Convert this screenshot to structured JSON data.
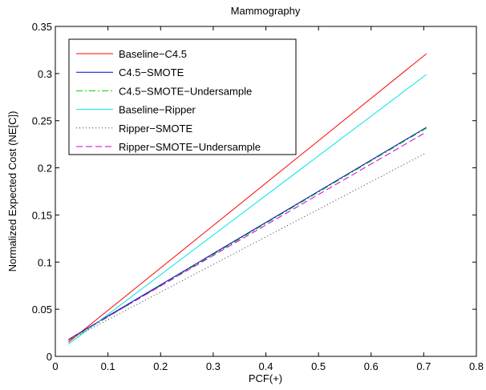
{
  "chart_data": {
    "type": "line",
    "title": "Mammography",
    "xlabel": "PCF(+)",
    "ylabel": "Normalized Expected Cost (NE[C])",
    "xlim": [
      0,
      0.8
    ],
    "ylim": [
      0,
      0.35
    ],
    "xticks": [
      "0",
      "0.1",
      "0.2",
      "0.3",
      "0.4",
      "0.5",
      "0.6",
      "0.7",
      "0.8"
    ],
    "yticks": [
      "0",
      "0.05",
      "0.1",
      "0.15",
      "0.2",
      "0.25",
      "0.3",
      "0.35"
    ],
    "grid": false,
    "legend_position": "top-left",
    "series": [
      {
        "name": "Baseline−C4.5",
        "color": "#ff0000",
        "dash": "solid",
        "x": [
          0.025,
          0.705
        ],
        "y": [
          0.015,
          0.321
        ]
      },
      {
        "name": "C4.5−SMOTE",
        "color": "#0000cc",
        "dash": "solid",
        "x": [
          0.025,
          0.705
        ],
        "y": [
          0.018,
          0.243
        ]
      },
      {
        "name": "C4.5−SMOTE−Undersample",
        "color": "#00cc00",
        "dash": "dashdot",
        "x": [
          0.025,
          0.705
        ],
        "y": [
          0.017,
          0.242
        ]
      },
      {
        "name": "Baseline−Ripper",
        "color": "#00e5e5",
        "dash": "solid",
        "x": [
          0.025,
          0.705
        ],
        "y": [
          0.013,
          0.299
        ]
      },
      {
        "name": "Ripper−SMOTE",
        "color": "#333333",
        "dash": "dotted",
        "x": [
          0.025,
          0.705
        ],
        "y": [
          0.017,
          0.216
        ]
      },
      {
        "name": "Ripper−SMOTE−Undersample",
        "color": "#cc00cc",
        "dash": "dashed",
        "x": [
          0.025,
          0.705
        ],
        "y": [
          0.018,
          0.238
        ]
      }
    ]
  }
}
